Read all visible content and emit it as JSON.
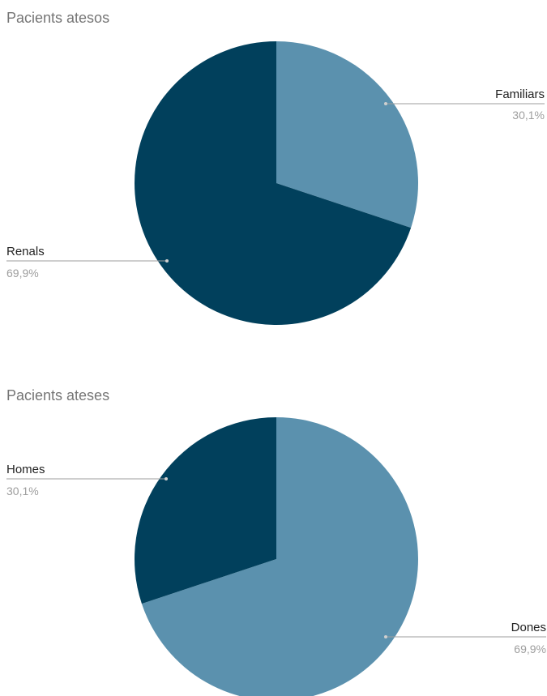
{
  "chart_data": [
    {
      "type": "pie",
      "title": "Pacients atesos",
      "slices": [
        {
          "label": "Familiars",
          "value": 30.1,
          "display": "30,1%",
          "color": "#5b91ae"
        },
        {
          "label": "Renals",
          "value": 69.9,
          "display": "69,9%",
          "color": "#01405c"
        }
      ],
      "start": "12 o'clock, clockwise"
    },
    {
      "type": "pie",
      "title": "Pacients ateses",
      "slices": [
        {
          "label": "Dones",
          "value": 69.9,
          "display": "69,9%",
          "color": "#5b91ae"
        },
        {
          "label": "Homes",
          "value": 30.1,
          "display": "30,1%",
          "color": "#01405c"
        }
      ],
      "start": "12 o'clock, clockwise"
    }
  ]
}
